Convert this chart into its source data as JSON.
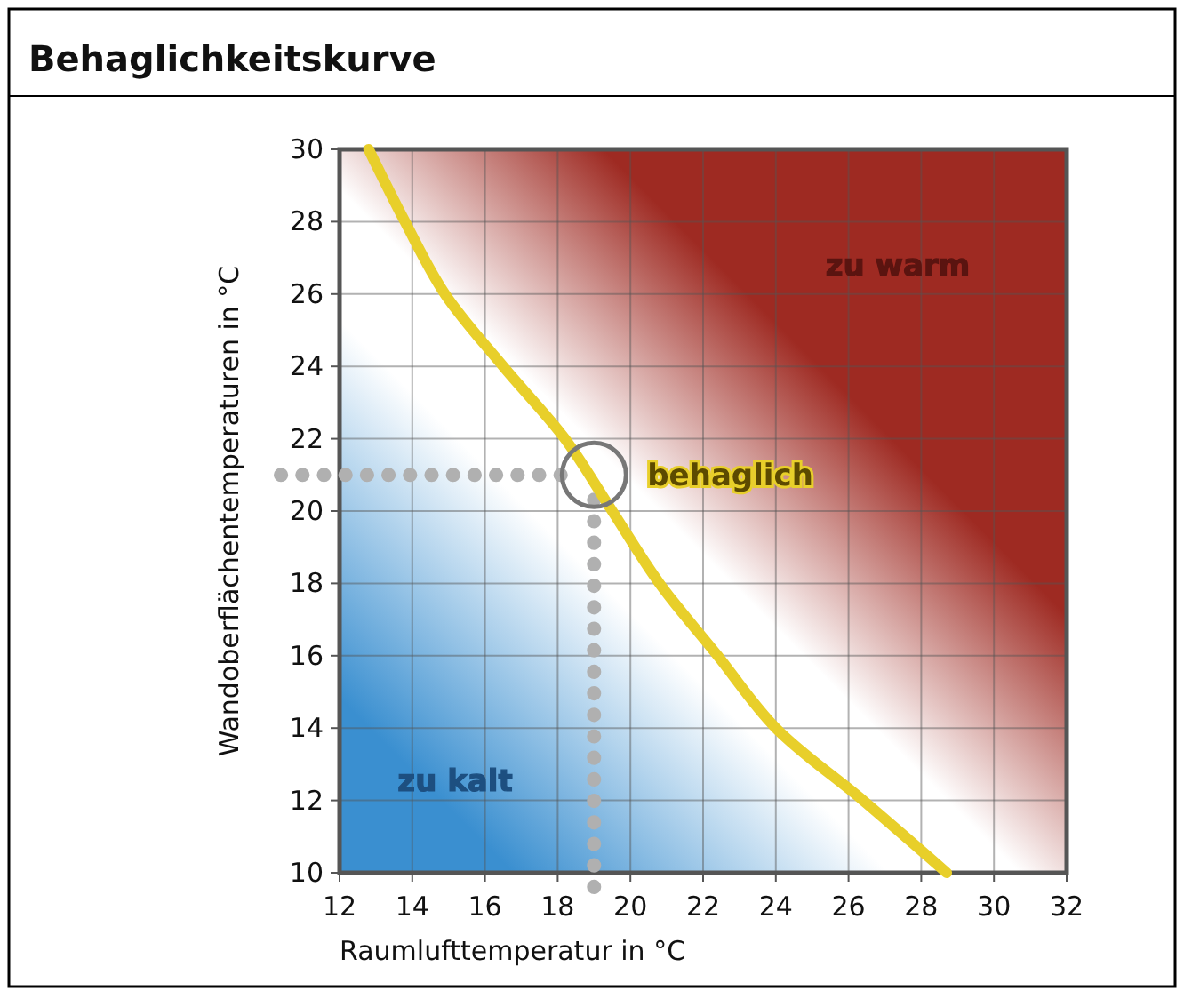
{
  "chart_data": {
    "type": "line",
    "title": "Behaglichkeitskurve",
    "xlabel": "Raumlufttemperatur in °C",
    "ylabel": "Wandoberflächentemperaturen in °C",
    "x": [
      12.8,
      13.8,
      14.9,
      16.5,
      18.2,
      19.5,
      20.8,
      22.4,
      24.0,
      26.4,
      28.7
    ],
    "series": [
      {
        "color": "#e8cf2a",
        "values": [
          30,
          28,
          26,
          24,
          22,
          20,
          18,
          16,
          14,
          12,
          10
        ]
      }
    ],
    "xlim": [
      12,
      32
    ],
    "xticks": [
      12,
      14,
      16,
      18,
      20,
      22,
      24,
      26,
      28,
      30,
      32
    ],
    "ylim": [
      10,
      30
    ],
    "yticks": [
      10,
      12,
      14,
      16,
      18,
      20,
      22,
      24,
      26,
      28,
      30
    ],
    "grid": true,
    "marker": "none",
    "line_style": "solid",
    "ref_lines": [
      {
        "axis": "y",
        "value": 21,
        "line_style": "dotted",
        "color": "#b0b0b0"
      },
      {
        "axis": "x",
        "value": 19,
        "line_style": "dotted",
        "color": "#b0b0b0"
      }
    ],
    "annotations": [
      {
        "text": "behaglich",
        "x": 19,
        "y": 21
      },
      "zu warm",
      "zu kalt"
    ]
  }
}
